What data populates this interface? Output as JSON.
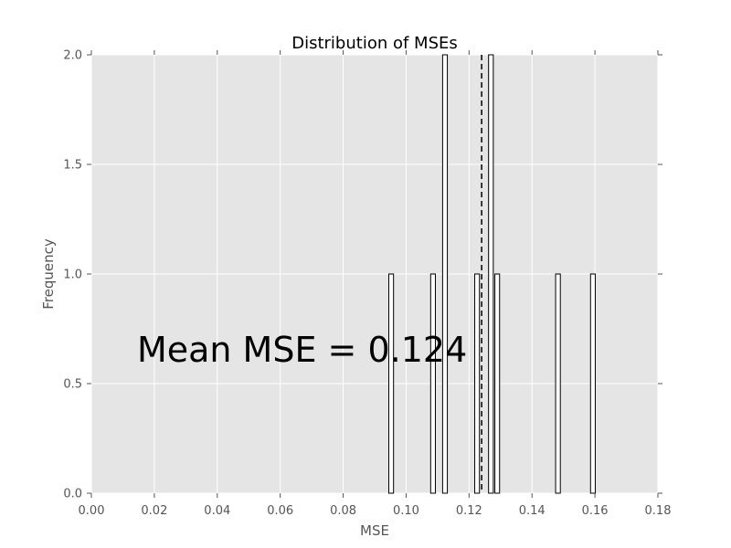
{
  "chart_data": {
    "type": "bar",
    "title": "Distribution of MSEs",
    "xlabel": "MSE",
    "ylabel": "Frequency",
    "xlim": [
      0.0,
      0.18
    ],
    "ylim": [
      0.0,
      2.0
    ],
    "x_ticks": [
      "0.00",
      "0.02",
      "0.04",
      "0.06",
      "0.08",
      "0.10",
      "0.12",
      "0.14",
      "0.16",
      "0.18"
    ],
    "y_ticks": [
      "0.0",
      "0.5",
      "1.0",
      "1.5",
      "2.0"
    ],
    "grid": true,
    "background_color": "#e5e5e5",
    "bar_fill": "#ffffff",
    "bar_edge": "#000000",
    "bars": [
      {
        "x0": 0.0945,
        "x1": 0.096,
        "count": 1
      },
      {
        "x0": 0.1078,
        "x1": 0.1093,
        "count": 1
      },
      {
        "x0": 0.1116,
        "x1": 0.1131,
        "count": 2
      },
      {
        "x0": 0.1218,
        "x1": 0.1233,
        "count": 1
      },
      {
        "x0": 0.1262,
        "x1": 0.1277,
        "count": 2
      },
      {
        "x0": 0.1282,
        "x1": 0.1297,
        "count": 1
      },
      {
        "x0": 0.1475,
        "x1": 0.149,
        "count": 1
      },
      {
        "x0": 0.1586,
        "x1": 0.1601,
        "count": 1
      }
    ],
    "mean_line": {
      "x": 0.124,
      "style": "dashed",
      "color": "#000000"
    },
    "annotation": {
      "text": "Mean MSE = 0.124",
      "x": 0.0145,
      "y": 0.6
    }
  }
}
